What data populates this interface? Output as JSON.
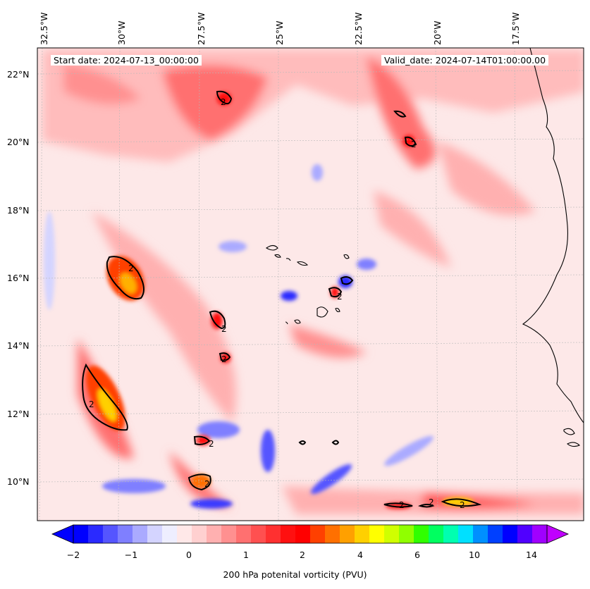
{
  "header": {
    "start_date": "Start date: 2024-07-13_00:00:00",
    "valid_date": "Valid_date: 2024-07-14T01:00:00.00"
  },
  "axes": {
    "lon_labels": [
      "32.5°W",
      "30°W",
      "27.5°W",
      "25°W",
      "22.5°W",
      "20°W",
      "17.5°W"
    ],
    "lat_labels": [
      "22°N",
      "20°N",
      "18°N",
      "16°N",
      "14°N",
      "12°N",
      "10°N"
    ]
  },
  "contour_labels": [
    "2",
    "2",
    "2",
    "2",
    "2",
    "2",
    "2",
    "2",
    "2",
    "2",
    "2",
    "2"
  ],
  "colorbar": {
    "label": "200 hPa potenital vorticity (PVU)",
    "ticks": [
      "−2",
      "−1",
      "0",
      "1",
      "2",
      "4",
      "6",
      "10",
      "14"
    ],
    "colors": [
      "#0000ff",
      "#2a2aff",
      "#5555ff",
      "#7f7fff",
      "#aaaaff",
      "#d4d4ff",
      "#eeeeff",
      "#ffe8e8",
      "#ffd0d0",
      "#ffb0b0",
      "#ff9090",
      "#ff7070",
      "#ff5050",
      "#ff3030",
      "#ff1010",
      "#ff0000",
      "#ff4000",
      "#ff7000",
      "#ffa000",
      "#ffd000",
      "#ffff00",
      "#d0ff00",
      "#90ff00",
      "#30ff00",
      "#00ff60",
      "#00ffb0",
      "#00e0ff",
      "#0090ff",
      "#0040ff",
      "#0000ff",
      "#5000ff",
      "#a000ff"
    ]
  },
  "chart_data": {
    "type": "heatmap",
    "variable": "200 hPa potential vorticity",
    "units": "PVU",
    "contour_level": 2,
    "colorbar_ticks": [
      -2,
      -1,
      0,
      1,
      2,
      4,
      6,
      10,
      14
    ],
    "lon_ticks": [
      -32.5,
      -30,
      -27.5,
      -25,
      -22.5,
      -20,
      -17.5
    ],
    "lat_ticks": [
      22,
      20,
      18,
      16,
      14,
      12,
      10
    ]
  }
}
